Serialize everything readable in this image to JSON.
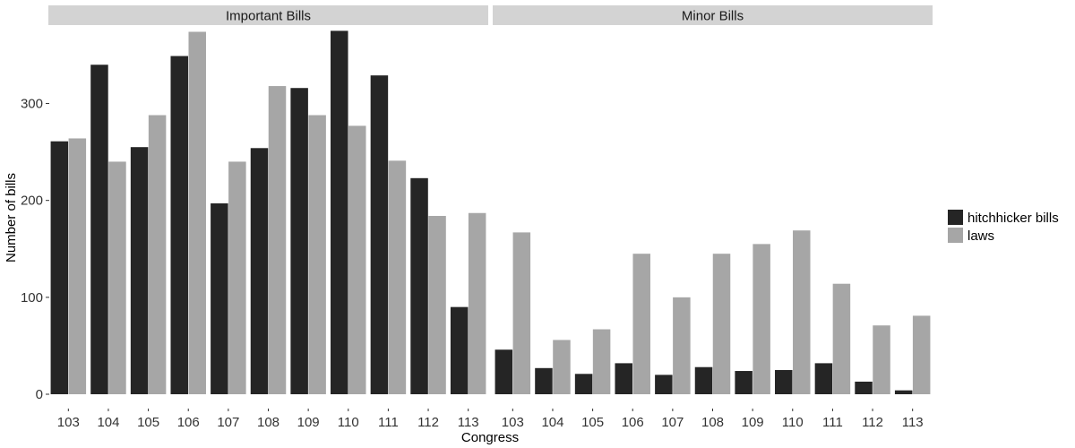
{
  "chart_data": {
    "type": "bar",
    "xlabel": "Congress",
    "ylabel": "Number of bills",
    "ylim": [
      0,
      380
    ],
    "y_ticks": [
      0,
      100,
      200,
      300
    ],
    "grid": false,
    "legend_position": "right",
    "categories": [
      "103",
      "104",
      "105",
      "106",
      "107",
      "108",
      "109",
      "110",
      "111",
      "112",
      "113"
    ],
    "series_meta": [
      {
        "name": "hitchhicker bills",
        "color": "#252525"
      },
      {
        "name": "laws",
        "color": "#a6a6a6"
      }
    ],
    "facets": [
      {
        "title": "Important Bills",
        "series": [
          {
            "name": "hitchhicker bills",
            "values": [
              261,
              340,
              255,
              349,
              197,
              254,
              316,
              375,
              329,
              223,
              90
            ]
          },
          {
            "name": "laws",
            "values": [
              264,
              240,
              288,
              374,
              240,
              318,
              288,
              277,
              241,
              184,
              187
            ]
          }
        ]
      },
      {
        "title": "Minor Bills",
        "series": [
          {
            "name": "hitchhicker bills",
            "values": [
              46,
              27,
              21,
              32,
              20,
              28,
              24,
              25,
              32,
              13,
              4
            ]
          },
          {
            "name": "laws",
            "values": [
              167,
              56,
              67,
              145,
              100,
              145,
              155,
              169,
              114,
              71,
              81
            ]
          }
        ]
      }
    ]
  }
}
